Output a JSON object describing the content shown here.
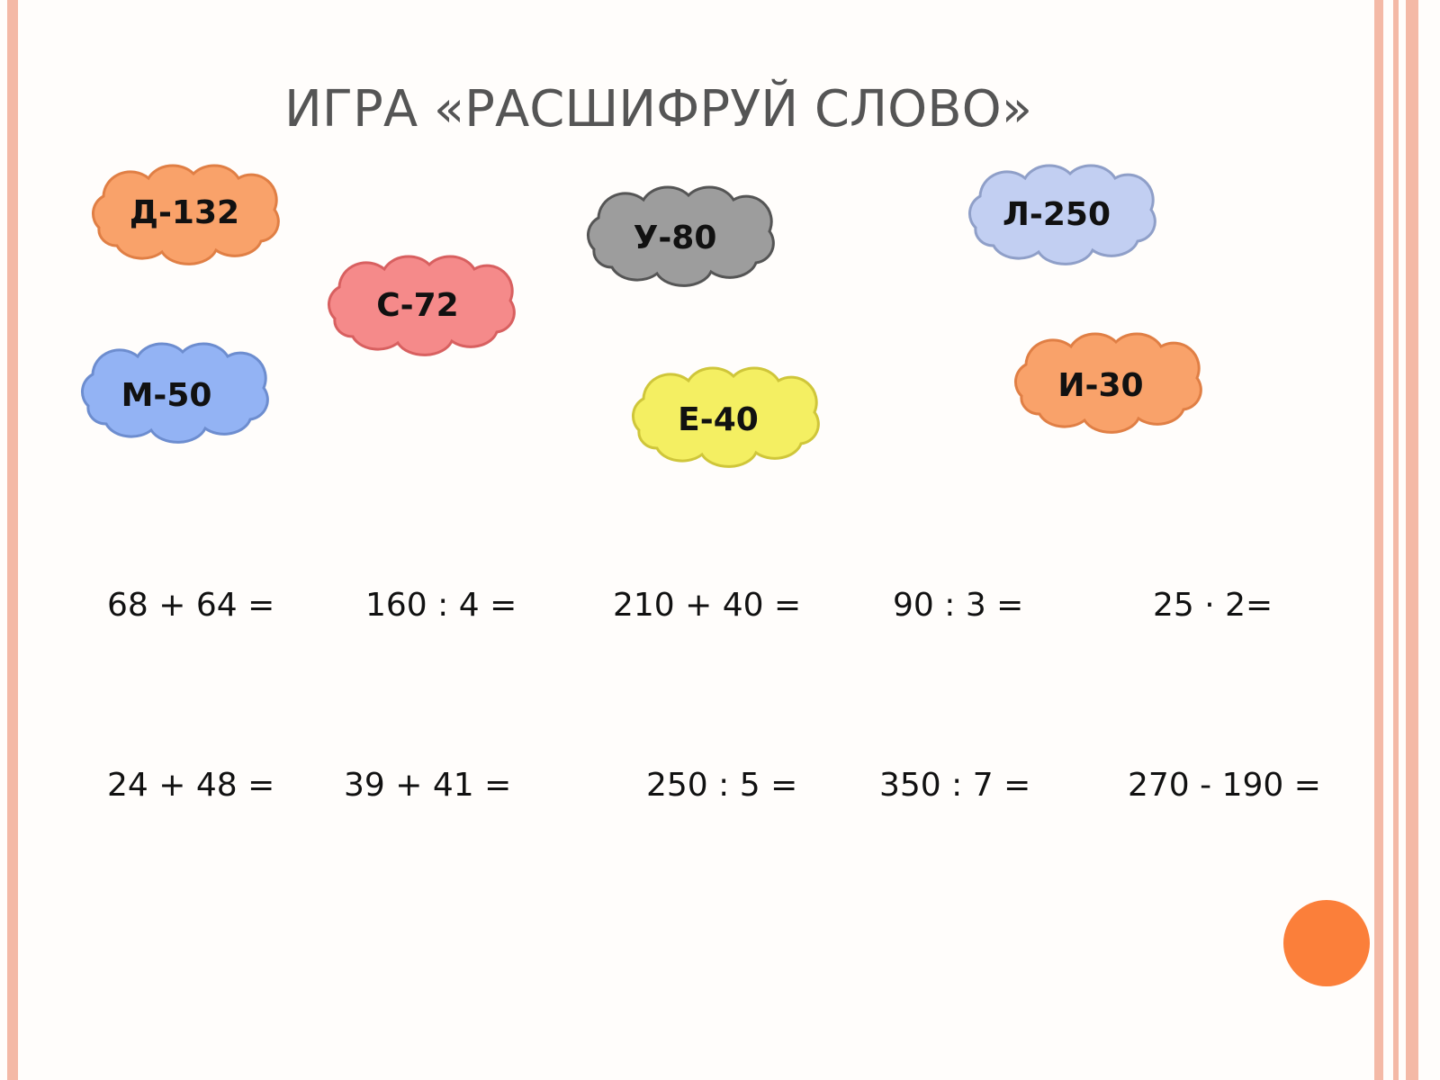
{
  "title": "ИГРА «РАСШИФРУЙ СЛОВО»",
  "clouds": [
    "Д-132",
    "С-72",
    "У-80",
    "Л-250",
    "М-50",
    "Е-40",
    "И-30"
  ],
  "equations": [
    [
      "68 + 64 =",
      "160 : 4 =",
      "210 + 40 =",
      "90 : 3 =",
      "25 · 2="
    ],
    [
      "24 + 48 =",
      "39 + 41 =",
      "250 : 5 =",
      "350 : 7 =",
      "270 - 190 ="
    ]
  ]
}
